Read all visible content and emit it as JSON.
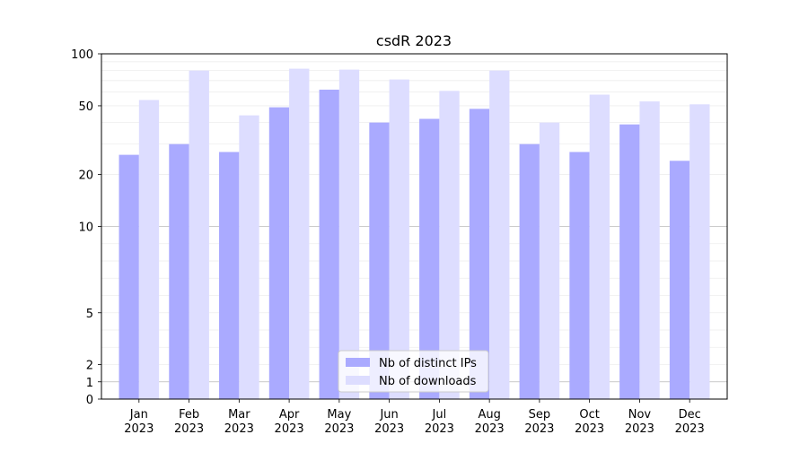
{
  "chart_data": {
    "type": "bar",
    "title": "csdR 2023",
    "xlabel": "",
    "ylabel": "",
    "yscale": "symlog",
    "ylim": [
      0,
      100
    ],
    "yticks": [
      0,
      1,
      2,
      5,
      10,
      20,
      50,
      100
    ],
    "categories": [
      [
        "Jan",
        "2023"
      ],
      [
        "Feb",
        "2023"
      ],
      [
        "Mar",
        "2023"
      ],
      [
        "Apr",
        "2023"
      ],
      [
        "May",
        "2023"
      ],
      [
        "Jun",
        "2023"
      ],
      [
        "Jul",
        "2023"
      ],
      [
        "Aug",
        "2023"
      ],
      [
        "Sep",
        "2023"
      ],
      [
        "Oct",
        "2023"
      ],
      [
        "Nov",
        "2023"
      ],
      [
        "Dec",
        "2023"
      ]
    ],
    "series": [
      {
        "name": "Nb of distinct IPs",
        "color": "#aaaaff",
        "values": [
          26,
          30,
          27,
          49,
          62,
          40,
          42,
          48,
          30,
          27,
          39,
          24
        ]
      },
      {
        "name": "Nb of downloads",
        "color": "#ddddff",
        "values": [
          54,
          80,
          44,
          82,
          81,
          71,
          61,
          80,
          40,
          58,
          53,
          51
        ]
      }
    ],
    "grid": true,
    "legend": "bottom-center"
  }
}
